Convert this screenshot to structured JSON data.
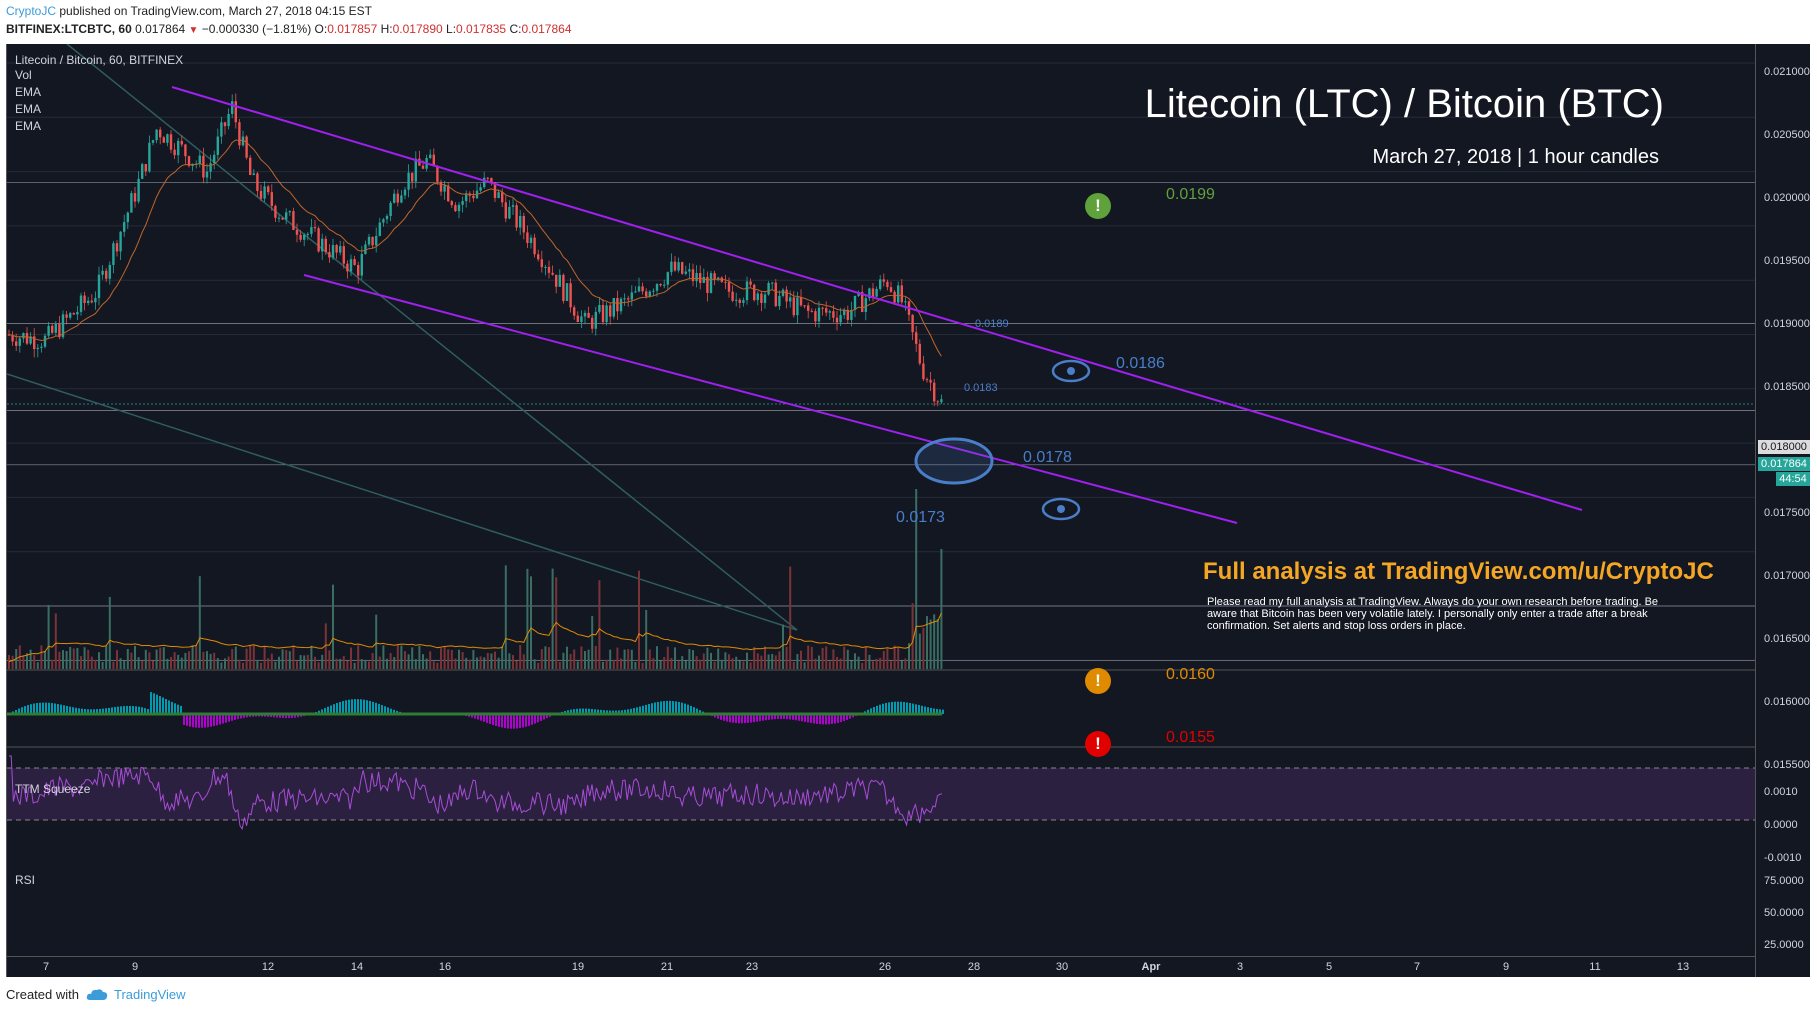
{
  "header": {
    "author": "CryptoJC",
    "published_text": " published on TradingView.com, March 27, 2018 04:15 EST",
    "symbol": "BITFINEX:LTCBTC, 60",
    "last": "0.017864",
    "change": "−0.000330 (−1.81%)",
    "open_label": "O:",
    "open": "0.017857",
    "high_label": "H:",
    "high": "0.017890",
    "low_label": "L:",
    "low": "0.017835",
    "close_label": "C:",
    "close": "0.017864"
  },
  "chart": {
    "symbol_title": "Litecoin / Bitcoin, 60, BITFINEX",
    "indicators": [
      "Vol",
      "EMA",
      "EMA",
      "EMA"
    ],
    "title": "Litecoin (LTC) / Bitcoin (BTC)",
    "subtitle": "March 27, 2018 | 1 hour candles",
    "analysis_link": "Full analysis at TradingView.com/u/CryptoJC",
    "note": "Please read my full analysis at TradingView. Always do your own research before trading. Be aware that Bitcoin has been very volatile lately. I personally only enter a trade after a break confirmation. Set alerts and stop loss orders in place.",
    "levels": {
      "l0199": "0.0199",
      "l0189": "0.0189",
      "l0186": "0.0186",
      "l0183": "0.0183",
      "l0178": "0.0178",
      "l0173": "0.0173",
      "l0160": "0.0160",
      "l0155": "0.0155"
    },
    "badges": {
      "green": "!",
      "orange": "!",
      "red": "!"
    },
    "colors": {
      "background": "#131722",
      "up": "#26a69a",
      "down": "#ef5350",
      "channel": "#a020f0",
      "level_blue": "#4a7ec8",
      "level_green": "#5fa13a",
      "level_orange": "#e08a00",
      "level_red": "#e00000"
    }
  },
  "price_axis": {
    "ticks": [
      "0.021000",
      "0.020500",
      "0.020000",
      "0.019500",
      "0.019000",
      "0.018500",
      "0.017500",
      "0.017000",
      "0.016500",
      "0.016000",
      "0.015500"
    ],
    "marker_round": "0.018000",
    "marker_last": "0.017864",
    "marker_timer": "44:54"
  },
  "squeeze": {
    "label": "TTM Squeeze",
    "ticks": [
      "0.0010",
      "0.0000",
      "-0.0010"
    ]
  },
  "rsi": {
    "label": "RSI",
    "ticks": [
      "75.0000",
      "50.0000",
      "25.0000"
    ]
  },
  "time_axis": {
    "ticks": [
      "7",
      "9",
      "12",
      "14",
      "16",
      "19",
      "21",
      "23",
      "26",
      "28",
      "30",
      "Apr",
      "3",
      "5",
      "7",
      "9",
      "11",
      "13"
    ]
  },
  "footer": {
    "created_with": "Created with",
    "brand": "TradingView"
  },
  "chart_data": {
    "type": "candlestick",
    "title": "Litecoin (LTC) / Bitcoin (BTC)",
    "subtitle": "March 27, 2018 | 1 hour candles",
    "x_ticks": [
      "7",
      "9",
      "12",
      "14",
      "16",
      "19",
      "21",
      "23",
      "26",
      "28",
      "30",
      "Apr",
      "3",
      "5",
      "7",
      "9",
      "11",
      "13"
    ],
    "ylim": [
      0.0152,
      0.0212
    ],
    "price_path": [
      {
        "x": "Mar 6",
        "y": 0.0185
      },
      {
        "x": "Mar 7",
        "y": 0.01845
      },
      {
        "x": "Mar 8",
        "y": 0.0189
      },
      {
        "x": "Mar 9",
        "y": 0.0198
      },
      {
        "x": "Mar 9.5",
        "y": 0.0204
      },
      {
        "x": "Mar 10",
        "y": 0.02
      },
      {
        "x": "Mar 11",
        "y": 0.0206
      },
      {
        "x": "Mar 11.5",
        "y": 0.0199
      },
      {
        "x": "Mar 12",
        "y": 0.0196
      },
      {
        "x": "Mar 13",
        "y": 0.0194
      },
      {
        "x": "Mar 14",
        "y": 0.0191
      },
      {
        "x": "Mar 15",
        "y": 0.0199
      },
      {
        "x": "Mar 15.5",
        "y": 0.0201
      },
      {
        "x": "Mar 16",
        "y": 0.0197
      },
      {
        "x": "Mar 17",
        "y": 0.0199
      },
      {
        "x": "Mar 18",
        "y": 0.0193
      },
      {
        "x": "Mar 19",
        "y": 0.0186
      },
      {
        "x": "Mar 20",
        "y": 0.0188
      },
      {
        "x": "Mar 21",
        "y": 0.0191
      },
      {
        "x": "Mar 22",
        "y": 0.0189
      },
      {
        "x": "Mar 23",
        "y": 0.0189
      },
      {
        "x": "Mar 24",
        "y": 0.0187
      },
      {
        "x": "Mar 25",
        "y": 0.0187
      },
      {
        "x": "Mar 26",
        "y": 0.019
      },
      {
        "x": "Mar 26.5",
        "y": 0.0188
      },
      {
        "x": "Mar 27",
        "y": 0.01786
      }
    ],
    "channel_upper": [
      {
        "x": "Mar 9.5",
        "y": 0.02085
      },
      {
        "x": "Apr 10.5",
        "y": 0.01755
      }
    ],
    "channel_lower": [
      {
        "x": "Mar 12.5",
        "y": 0.0191
      },
      {
        "x": "Apr 2",
        "y": 0.0174
      }
    ],
    "horizontal_levels": [
      0.0199,
      0.0186,
      0.0178,
      0.0173,
      0.016,
      0.0155
    ],
    "annotations": [
      "0.0199",
      "0.0189",
      "0.0186",
      "0.0183",
      "0.0178",
      "0.0173",
      "0.0160",
      "0.0155"
    ],
    "indicators": {
      "volume": {
        "label": "Vol"
      },
      "ttm_squeeze": {
        "label": "TTM Squeeze",
        "ylim": [
          -0.001,
          0.001
        ]
      },
      "rsi": {
        "label": "RSI",
        "ylim": [
          25,
          75
        ]
      }
    }
  }
}
